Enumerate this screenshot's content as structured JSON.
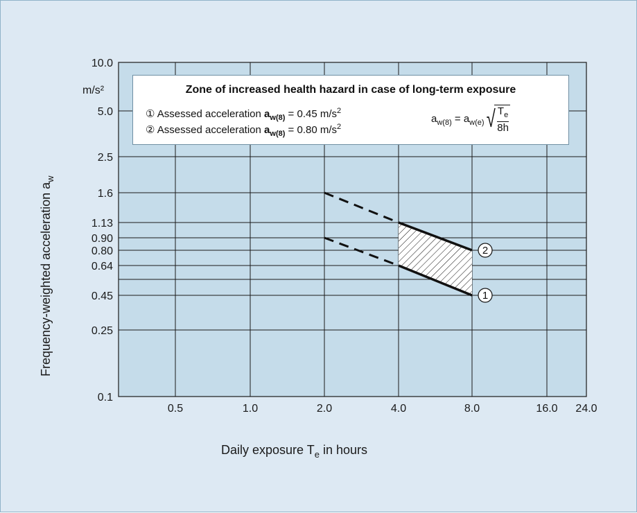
{
  "chart_data": {
    "type": "line",
    "xlabel_main": "Daily exposure T",
    "xlabel_sub": "e",
    "xlabel_tail": " in hours",
    "ylabel_main": "Frequency-weighted acceleration a",
    "ylabel_sub": "w",
    "y_unit": "m/s²",
    "x_ticks": [
      {
        "v": 0.5,
        "label": "0.5"
      },
      {
        "v": 1.0,
        "label": "1.0"
      },
      {
        "v": 2.0,
        "label": "2.0"
      },
      {
        "v": 4.0,
        "label": "4.0"
      },
      {
        "v": 8.0,
        "label": "8.0"
      },
      {
        "v": 16.0,
        "label": "16.0"
      },
      {
        "v": 24.0,
        "label": "24.0"
      }
    ],
    "x_gridlines": [
      0.5,
      1.0,
      2.0,
      4.0,
      8.0,
      16.0
    ],
    "y_ticks": [
      {
        "v": 0.1,
        "label": "0.1"
      },
      {
        "v": 0.25,
        "label": "0.25"
      },
      {
        "v": 0.45,
        "label": "0.45"
      },
      {
        "v": 0.64,
        "label": "0.64"
      },
      {
        "v": 0.8,
        "label": "0.80"
      },
      {
        "v": 0.9,
        "label": "0.90"
      },
      {
        "v": 1.13,
        "label": "1.13"
      },
      {
        "v": 1.6,
        "label": "1.6"
      },
      {
        "v": 2.5,
        "label": "2.5"
      },
      {
        "v": 5.0,
        "label": "5.0"
      },
      {
        "v": 10.0,
        "label": "10.0"
      }
    ],
    "y_gridlines": [
      0.25,
      0.45,
      0.55,
      0.64,
      0.8,
      0.9,
      1.13,
      1.6,
      2.5,
      5.0
    ],
    "series": [
      {
        "marker": "①",
        "solid": [
          [
            4.0,
            0.64
          ],
          [
            8.0,
            0.45
          ]
        ],
        "dashed": [
          [
            2.0,
            0.9
          ],
          [
            4.0,
            0.64
          ]
        ]
      },
      {
        "marker": "②",
        "solid": [
          [
            4.0,
            1.13
          ],
          [
            8.0,
            0.8
          ]
        ],
        "dashed": [
          [
            2.0,
            1.6
          ],
          [
            4.0,
            1.13
          ]
        ]
      }
    ],
    "hatched_zone": [
      [
        4.0,
        1.13
      ],
      [
        8.0,
        0.8
      ],
      [
        8.0,
        0.45
      ],
      [
        4.0,
        0.64
      ]
    ],
    "grid": true,
    "scale": "log"
  },
  "legend": {
    "title": "Zone of increased health hazard in case of long-term exposure",
    "item1_prefix": "① Assessed acceleration ",
    "item1_value": " = 0.45 m/s",
    "item2_prefix": "② Assessed acceleration ",
    "item2_value": " = 0.80 m/s",
    "symbol_a": "a",
    "symbol_sub": "w(8)",
    "formula_lhs": "a",
    "formula_lhs_sub": "w(8)",
    "formula_eq": " = a",
    "formula_rhs_sub": "w(e)",
    "formula_num": "T",
    "formula_num_sub": "e",
    "formula_den": "8h"
  },
  "colors": {
    "background": "#dde9f3",
    "plot_area": "#c5dcea",
    "grid": "#1a1a1a",
    "legend_border": "#6f8fa3"
  }
}
